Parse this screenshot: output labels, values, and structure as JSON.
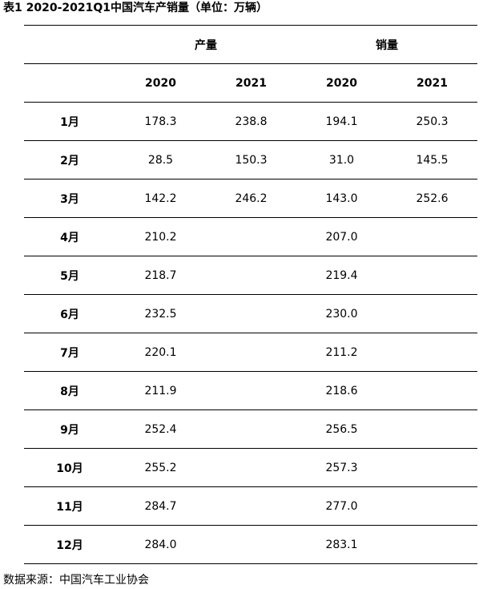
{
  "title": "表1 2020-2021Q1中国汽车产销量（单位：万辆）",
  "headers": {
    "production": "产量",
    "sales": "销量",
    "years": [
      "2020",
      "2021",
      "2020",
      "2021"
    ]
  },
  "rows": [
    {
      "month": "1月",
      "prod_2020": "178.3",
      "prod_2021": "238.8",
      "sales_2020": "194.1",
      "sales_2021": "250.3"
    },
    {
      "month": "2月",
      "prod_2020": "28.5",
      "prod_2021": "150.3",
      "sales_2020": "31.0",
      "sales_2021": "145.5"
    },
    {
      "month": "3月",
      "prod_2020": "142.2",
      "prod_2021": "246.2",
      "sales_2020": "143.0",
      "sales_2021": "252.6"
    },
    {
      "month": "4月",
      "prod_2020": "210.2",
      "prod_2021": "",
      "sales_2020": "207.0",
      "sales_2021": ""
    },
    {
      "month": "5月",
      "prod_2020": "218.7",
      "prod_2021": "",
      "sales_2020": "219.4",
      "sales_2021": ""
    },
    {
      "month": "6月",
      "prod_2020": "232.5",
      "prod_2021": "",
      "sales_2020": "230.0",
      "sales_2021": ""
    },
    {
      "month": "7月",
      "prod_2020": "220.1",
      "prod_2021": "",
      "sales_2020": "211.2",
      "sales_2021": ""
    },
    {
      "month": "8月",
      "prod_2020": "211.9",
      "prod_2021": "",
      "sales_2020": "218.6",
      "sales_2021": ""
    },
    {
      "month": "9月",
      "prod_2020": "252.4",
      "prod_2021": "",
      "sales_2020": "256.5",
      "sales_2021": ""
    },
    {
      "month": "10月",
      "prod_2020": "255.2",
      "prod_2021": "",
      "sales_2020": "257.3",
      "sales_2021": ""
    },
    {
      "month": "11月",
      "prod_2020": "284.7",
      "prod_2021": "",
      "sales_2020": "277.0",
      "sales_2021": ""
    },
    {
      "month": "12月",
      "prod_2020": "284.0",
      "prod_2021": "",
      "sales_2020": "283.1",
      "sales_2021": ""
    }
  ],
  "source": "数据来源：中国汽车工业协会"
}
